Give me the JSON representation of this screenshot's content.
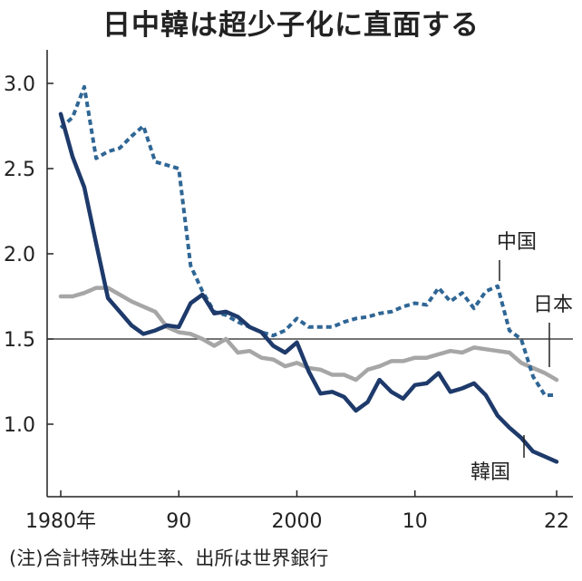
{
  "chart_data": {
    "type": "line",
    "title": "日中韓は超少子化に直面する",
    "note": "(注)合計特殊出生率、出所は世界銀行",
    "xlim": [
      1980,
      2022
    ],
    "ylim": [
      0.75,
      3.2
    ],
    "reference_line": 1.5,
    "y_ticks": [
      {
        "value": 1.0,
        "label": "1.0"
      },
      {
        "value": 1.5,
        "label": "1.5"
      },
      {
        "value": 2.0,
        "label": "2.0"
      },
      {
        "value": 2.5,
        "label": "2.5"
      },
      {
        "value": 3.0,
        "label": "3.0"
      }
    ],
    "x_ticks": [
      {
        "value": 1980,
        "label": "1980年"
      },
      {
        "value": 1990,
        "label": "90"
      },
      {
        "value": 2000,
        "label": "2000"
      },
      {
        "value": 2010,
        "label": "10"
      },
      {
        "value": 2022,
        "label": "22"
      }
    ],
    "x": [
      1980,
      1981,
      1982,
      1983,
      1984,
      1985,
      1986,
      1987,
      1988,
      1989,
      1990,
      1991,
      1992,
      1993,
      1994,
      1995,
      1996,
      1997,
      1998,
      1999,
      2000,
      2001,
      2002,
      2003,
      2004,
      2005,
      2006,
      2007,
      2008,
      2009,
      2010,
      2011,
      2012,
      2013,
      2014,
      2015,
      2016,
      2017,
      2018,
      2019,
      2020,
      2021,
      2022
    ],
    "series": [
      {
        "name": "中国",
        "color": "#2f6695",
        "style": "dashed",
        "values": [
          2.74,
          2.8,
          2.98,
          2.56,
          2.6,
          2.62,
          2.69,
          2.75,
          2.54,
          2.52,
          2.5,
          1.93,
          1.78,
          1.66,
          1.64,
          1.6,
          1.57,
          1.54,
          1.52,
          1.55,
          1.62,
          1.57,
          1.57,
          1.57,
          1.6,
          1.62,
          1.63,
          1.65,
          1.66,
          1.69,
          1.71,
          1.7,
          1.8,
          1.72,
          1.77,
          1.68,
          1.78,
          1.81,
          1.55,
          1.5,
          1.28,
          1.17,
          1.17
        ]
      },
      {
        "name": "日本",
        "color": "#a6a6a6",
        "style": "solid",
        "values": [
          1.75,
          1.75,
          1.77,
          1.8,
          1.8,
          1.76,
          1.72,
          1.69,
          1.66,
          1.57,
          1.54,
          1.53,
          1.5,
          1.46,
          1.5,
          1.42,
          1.43,
          1.39,
          1.38,
          1.34,
          1.36,
          1.33,
          1.32,
          1.29,
          1.29,
          1.26,
          1.32,
          1.34,
          1.37,
          1.37,
          1.39,
          1.39,
          1.41,
          1.43,
          1.42,
          1.45,
          1.44,
          1.43,
          1.42,
          1.36,
          1.33,
          1.3,
          1.26
        ]
      },
      {
        "name": "韓国",
        "color": "#1e3a6b",
        "style": "solid",
        "values": [
          2.82,
          2.57,
          2.39,
          2.06,
          1.74,
          1.66,
          1.58,
          1.53,
          1.55,
          1.58,
          1.57,
          1.71,
          1.76,
          1.65,
          1.66,
          1.63,
          1.57,
          1.54,
          1.46,
          1.42,
          1.48,
          1.31,
          1.18,
          1.19,
          1.16,
          1.08,
          1.13,
          1.26,
          1.19,
          1.15,
          1.23,
          1.24,
          1.3,
          1.19,
          1.21,
          1.24,
          1.17,
          1.05,
          0.98,
          0.92,
          0.84,
          0.81,
          0.78
        ]
      }
    ],
    "labels": {
      "china": "中国",
      "japan": "日本",
      "korea": "韓国"
    }
  }
}
